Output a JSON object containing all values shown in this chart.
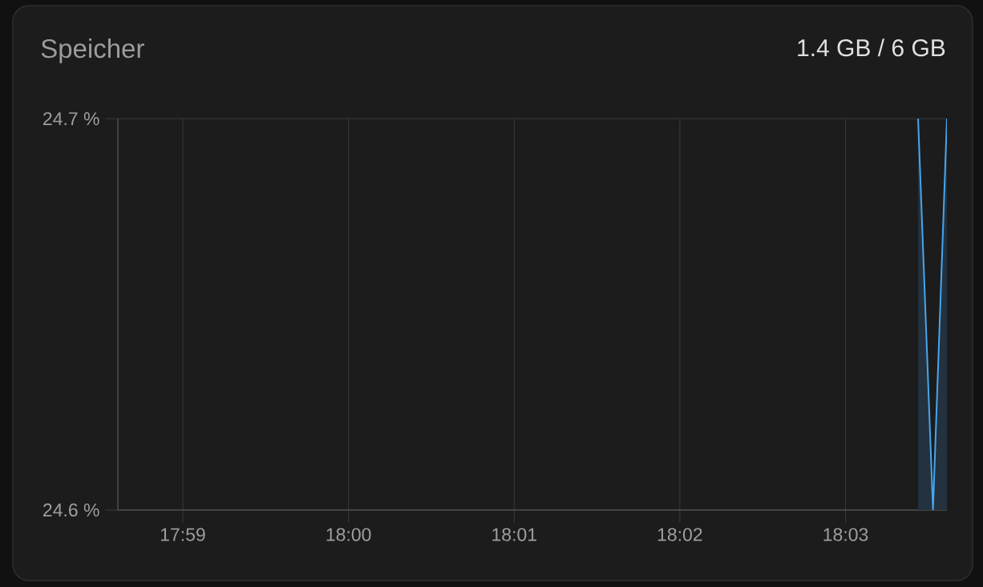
{
  "chart_data": {
    "type": "area",
    "title": "Speicher",
    "subtitle": "1.4 GB / 6 GB",
    "x": [
      18.0573,
      18.0588,
      18.0602
    ],
    "series": [
      {
        "color": "#47a6ee",
        "values": [
          24.7,
          24.6,
          24.7
        ]
      }
    ],
    "xlim": [
      17.9768,
      18.0602
    ],
    "ylim": [
      24.6,
      24.7
    ],
    "xticks": [
      {
        "value": 17.98333,
        "label": "17:59"
      },
      {
        "value": 18.0,
        "label": "18:00"
      },
      {
        "value": 18.01667,
        "label": "18:01"
      },
      {
        "value": 18.03333,
        "label": "18:02"
      },
      {
        "value": 18.05,
        "label": "18:03"
      }
    ],
    "yticks": [
      {
        "value": 24.6,
        "label": "24.6 %"
      },
      {
        "value": 24.7,
        "label": "24.7 %"
      }
    ],
    "grid": true
  }
}
